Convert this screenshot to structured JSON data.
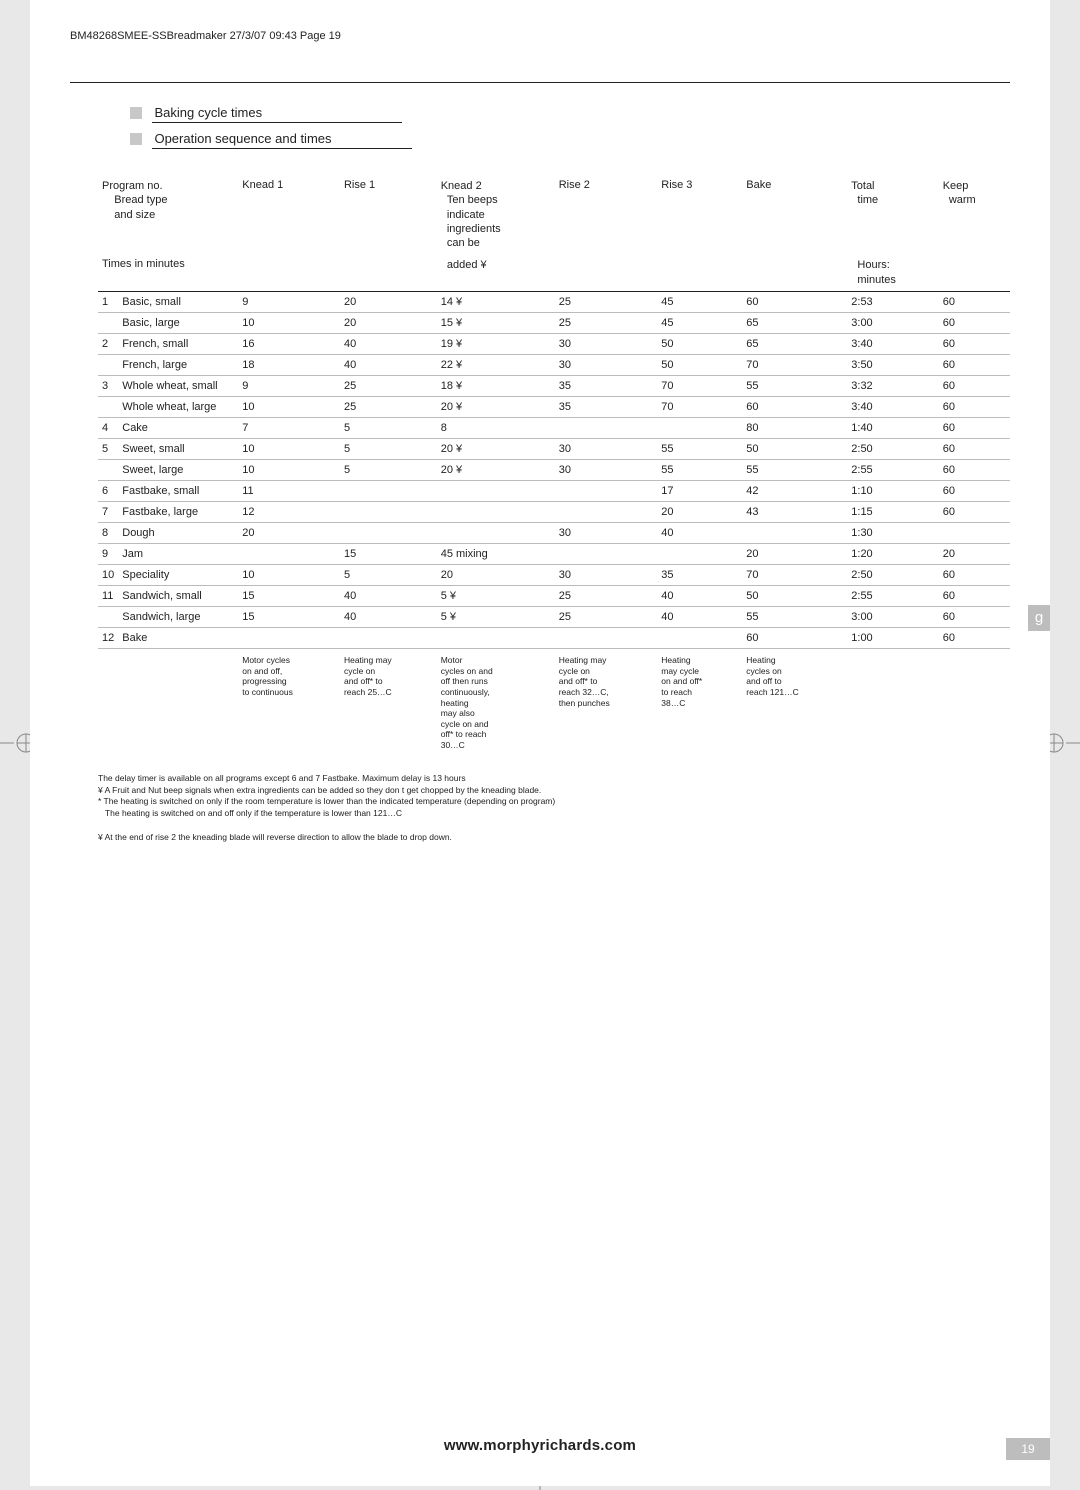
{
  "meta": {
    "header_line": "BM48268SMEE-SSBreadmaker  27/3/07  09:43  Page 19",
    "footer_url": "www.morphyrichards.com",
    "page_number": "19",
    "side_tab": "g"
  },
  "sections": {
    "s1": "Baking cycle times",
    "s2": "Operation sequence and times"
  },
  "table": {
    "header": {
      "c1a": "Program no.",
      "c1b": "Bread type",
      "c1c": "and size",
      "c2": "Knead 1",
      "c3": "Rise 1",
      "c4a": "Knead 2",
      "c4b": "Ten beeps",
      "c4c": "indicate",
      "c4d": "ingredients",
      "c4e": "can be",
      "c4f": "added ¥",
      "c5": "Rise 2",
      "c6": "Rise 3",
      "c7": "Bake",
      "c8a": "Total",
      "c8b": "time",
      "c8c": "Hours:",
      "c8d": "minutes",
      "c9a": "Keep",
      "c9b": "warm",
      "times_label": "Times in minutes"
    },
    "rows": [
      {
        "no": "1",
        "name": "Basic, small",
        "k1": "9",
        "r1": "20",
        "k2": "14 ¥",
        "r2": "25",
        "r3": "45",
        "bake": "60",
        "tot": "2:53",
        "kw": "60"
      },
      {
        "no": "",
        "name": "Basic, large",
        "k1": "10",
        "r1": "20",
        "k2": "15 ¥",
        "r2": "25",
        "r3": "45",
        "bake": "65",
        "tot": "3:00",
        "kw": "60"
      },
      {
        "no": "2",
        "name": "French, small",
        "k1": "16",
        "r1": "40",
        "k2": "19 ¥",
        "r2": "30",
        "r3": "50",
        "bake": "65",
        "tot": "3:40",
        "kw": "60"
      },
      {
        "no": "",
        "name": "French, large",
        "k1": "18",
        "r1": "40",
        "k2": "22 ¥",
        "r2": "30",
        "r3": "50",
        "bake": "70",
        "tot": "3:50",
        "kw": "60"
      },
      {
        "no": "3",
        "name": "Whole wheat, small",
        "k1": "9",
        "r1": "25",
        "k2": "18 ¥",
        "r2": "35",
        "r3": "70",
        "bake": "55",
        "tot": "3:32",
        "kw": "60"
      },
      {
        "no": "",
        "name": "Whole wheat, large",
        "k1": "10",
        "r1": "25",
        "k2": "20 ¥",
        "r2": "35",
        "r3": "70",
        "bake": "60",
        "tot": "3:40",
        "kw": "60"
      },
      {
        "no": "4",
        "name": "Cake",
        "k1": "7",
        "r1": "5",
        "k2": "8",
        "r2": "",
        "r3": "",
        "bake": "80",
        "tot": "1:40",
        "kw": "60"
      },
      {
        "no": "5",
        "name": "Sweet, small",
        "k1": "10",
        "r1": "5",
        "k2": "20 ¥",
        "r2": "30",
        "r3": "55",
        "bake": "50",
        "tot": "2:50",
        "kw": "60"
      },
      {
        "no": "",
        "name": "Sweet, large",
        "k1": "10",
        "r1": "5",
        "k2": "20 ¥",
        "r2": "30",
        "r3": "55",
        "bake": "55",
        "tot": "2:55",
        "kw": "60"
      },
      {
        "no": "6",
        "name": "Fastbake, small",
        "k1": "11",
        "r1": "",
        "k2": "",
        "r2": "",
        "r3": "17",
        "bake": "42",
        "tot": "1:10",
        "kw": "60"
      },
      {
        "no": "7",
        "name": "Fastbake, large",
        "k1": "12",
        "r1": "",
        "k2": "",
        "r2": "",
        "r3": "20",
        "bake": "43",
        "tot": "1:15",
        "kw": "60"
      },
      {
        "no": "8",
        "name": "Dough",
        "k1": "20",
        "r1": "",
        "k2": "",
        "r2": "30",
        "r3": "40",
        "bake": "",
        "tot": "1:30",
        "kw": ""
      },
      {
        "no": "9",
        "name": "Jam",
        "k1": "",
        "r1": "15",
        "k2": "45   mixing",
        "r2": "",
        "r3": "",
        "bake": "20",
        "tot": "1:20",
        "kw": "20"
      },
      {
        "no": "10",
        "name": "Speciality",
        "k1": "10",
        "r1": "5",
        "k2": "20",
        "r2": "30",
        "r3": "35",
        "bake": "70",
        "tot": "2:50",
        "kw": "60"
      },
      {
        "no": "11",
        "name": "Sandwich, small",
        "k1": "15",
        "r1": "40",
        "k2": "5 ¥",
        "r2": "25",
        "r3": "40",
        "bake": "50",
        "tot": "2:55",
        "kw": "60"
      },
      {
        "no": "",
        "name": "Sandwich, large",
        "k1": "15",
        "r1": "40",
        "k2": "5 ¥",
        "r2": "25",
        "r3": "40",
        "bake": "55",
        "tot": "3:00",
        "kw": "60"
      },
      {
        "no": "12",
        "name": "Bake",
        "k1": "",
        "r1": "",
        "k2": "",
        "r2": "",
        "r3": "",
        "bake": "60",
        "tot": "1:00",
        "kw": "60"
      }
    ],
    "colnotes": {
      "k1": "Motor cycles\non and off,\nprogressing\nto continuous",
      "r1": "Heating may\ncycle on\nand off* to\nreach 25…C",
      "k2": "Motor\ncycles on and\noff then runs\ncontinuously,\nheating\nmay also\ncycle on and\noff* to reach\n30…C",
      "r2": "Heating may\ncycle on\nand off* to\nreach 32…C,\nthen punches",
      "r3": "Heating\nmay cycle\non and off*\nto reach\n38…C",
      "bake": "Heating\ncycles on\nand off to\n reach 121…C"
    }
  },
  "footnotes": {
    "l1": "The delay timer is available on all programs except 6 and 7 Fastbake. Maximum delay is 13 hours",
    "l2": "¥ A Fruit and Nut beep signals when extra ingredients can be added so they don t get chopped by the kneading blade.",
    "l3": "* The heating is switched on only if the room temperature is lower than the indicated temperature (depending on program)",
    "l4": "   The heating is switched on and off only if the temperature is lower than 121…C",
    "l5": "¥ At the end of rise 2 the kneading blade will reverse direction to allow the blade to drop down."
  }
}
